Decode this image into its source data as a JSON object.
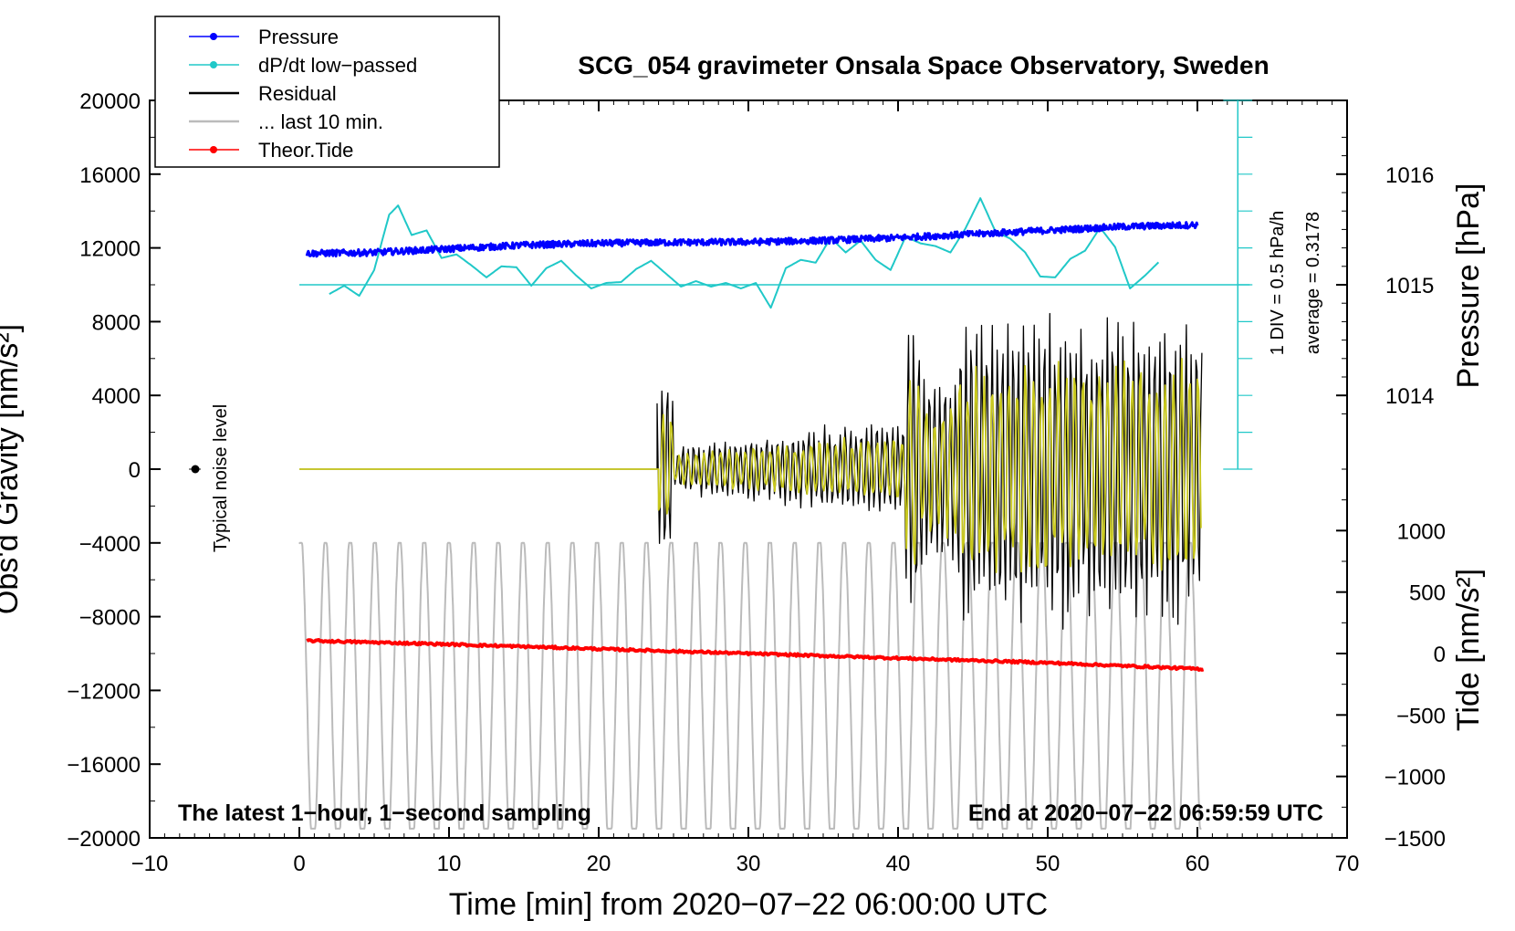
{
  "chart_data": {
    "type": "line",
    "title": "SCG_054 gravimeter Onsala Space Observatory, Sweden",
    "xlabel": "Time [min] from 2020−07−22 06:00:00 UTC",
    "xlim": [
      -10,
      70
    ],
    "x_ticks": [
      -10,
      0,
      10,
      20,
      30,
      40,
      50,
      60,
      70
    ],
    "x_tick_labels": [
      "−10",
      "0",
      "10",
      "20",
      "30",
      "40",
      "50",
      "60",
      "70"
    ],
    "left_axis": {
      "label": "Obs'd Gravity [nm/s²]",
      "ylim": [
        -20000,
        20000
      ],
      "ticks": [
        -20000,
        -16000,
        -12000,
        -8000,
        -4000,
        0,
        4000,
        8000,
        12000,
        16000,
        20000
      ],
      "tick_labels": [
        "−20000",
        "−16000",
        "−12000",
        "−8000",
        "−4000",
        "0",
        "4000",
        "8000",
        "12000",
        "16000",
        "20000"
      ]
    },
    "pressure_axis": {
      "label": "Pressure [hPa]",
      "ticks": [
        1014,
        1015,
        1016
      ],
      "tick_labels": [
        "1014",
        "1015",
        "1016"
      ],
      "gravity_equiv": [
        4000,
        10000,
        16000
      ]
    },
    "tide_axis": {
      "label": "Tide [nm/s²]",
      "ticks": [
        -1500,
        -1000,
        -500,
        0,
        500,
        1000
      ],
      "tick_labels": [
        "−1500",
        "−1000",
        "−500",
        "0",
        "500",
        "1000"
      ],
      "gravity_equiv": [
        -20000,
        -16667,
        -13333,
        -10000,
        -6667,
        -3333
      ]
    },
    "dpdt_scale": {
      "div_label": "1 DIV = 0.5 hPa/h",
      "average_label": "average = 0.3178",
      "x": 62.7,
      "y_range": [
        0,
        20000
      ],
      "baseline": 10000,
      "divisions": 10
    },
    "legend": [
      {
        "label": "Pressure",
        "color": "#0000ff",
        "marker": true
      },
      {
        "label": "dP/dt low−passed",
        "color": "#20c8c8",
        "marker": true
      },
      {
        "label": "Residual",
        "color": "#000000",
        "marker": false
      },
      {
        "label": "... last 10 min.",
        "color": "#bbbbbb",
        "marker": false
      },
      {
        "label": "Theor.Tide",
        "color": "#ff0000",
        "marker": true
      }
    ],
    "noise_level": {
      "label": "Typical noise level",
      "x": -7,
      "y": 0
    },
    "annotations": {
      "left_note": "The latest 1−hour, 1−second sampling",
      "right_note": "End at 2020−07−22 06:59:59 UTC"
    },
    "series": [
      {
        "name": "Pressure",
        "color": "#0000ff",
        "x": [
          0.5,
          5,
          10,
          15,
          20,
          25,
          30,
          35,
          40,
          45,
          50,
          55,
          60
        ],
        "y": [
          11700,
          11750,
          11950,
          12150,
          12250,
          12300,
          12320,
          12400,
          12550,
          12750,
          12950,
          13150,
          13250
        ]
      },
      {
        "name": "dP/dt low−passed",
        "color": "#20c8c8",
        "x": [
          2,
          3,
          4,
          5,
          6,
          6.6,
          7.5,
          8.5,
          9.5,
          10.5,
          11.5,
          12.5,
          13.5,
          14.5,
          15.5,
          16.5,
          17.5,
          18.5,
          19.5,
          20.5,
          21.5,
          22.5,
          23.5,
          24.5,
          25.5,
          26.5,
          27.5,
          28.5,
          29.5,
          30.5,
          31.5,
          32.5,
          33.5,
          34.5,
          35.5,
          36.5,
          37.5,
          38.5,
          39.5,
          40.5,
          41.5,
          42.5,
          43.5,
          44.5,
          45.5,
          46.5,
          47.5,
          48.5,
          49.5,
          50.5,
          51.5,
          52.5,
          53.5,
          54.5,
          55.5,
          56.5,
          57.5
        ],
        "y": [
          9500,
          9950,
          9400,
          10800,
          13800,
          14300,
          12700,
          12950,
          11450,
          11650,
          11050,
          10400,
          11000,
          10950,
          9950,
          10900,
          11300,
          10500,
          9800,
          10100,
          10150,
          10850,
          11300,
          10600,
          9900,
          10200,
          9900,
          10100,
          9800,
          10100,
          8750,
          10900,
          11350,
          11200,
          12550,
          11750,
          12400,
          11350,
          10800,
          12600,
          12250,
          12100,
          11750,
          13050,
          14700,
          12900,
          12500,
          11750,
          10450,
          10400,
          11400,
          11850,
          13100,
          12050,
          9800,
          10500,
          11300
        ]
      },
      {
        "name": "Residual",
        "color": "#000000",
        "x": [
          0,
          23.9,
          24.6,
          25,
          28,
          31,
          34,
          36,
          38,
          40.5,
          41.2,
          42,
          44,
          45.6,
          47,
          50,
          53,
          56,
          58,
          60.3
        ],
        "y": [
          0,
          0,
          5200,
          -4400,
          1500,
          1000,
          -2000,
          3200,
          -3000,
          -2500,
          8600,
          -8500,
          6500,
          8600,
          -9500,
          8500,
          -9000,
          8500,
          -9500,
          8000
        ]
      },
      {
        "name": "Residual (filtered)",
        "color": "#c8c81e",
        "x": [
          0,
          24,
          25,
          30,
          35,
          40,
          41,
          43,
          45.5,
          47,
          50,
          55,
          60
        ],
        "y": [
          0,
          0,
          3000,
          1500,
          -1800,
          2500,
          6000,
          -5000,
          7500,
          -6000,
          5000,
          -4500,
          4500
        ]
      },
      {
        "name": "... last 10 min.",
        "color": "#bbbbbb",
        "x": [
          0,
          60.3
        ],
        "y_range": [
          -21000,
          -3500
        ],
        "period_min": 1.65
      },
      {
        "name": "Theor.Tide",
        "color": "#ff0000",
        "x": [
          0.5,
          10,
          20,
          30,
          40,
          50,
          60.5
        ],
        "y": [
          -9300,
          -9500,
          -9750,
          -10000,
          -10250,
          -10500,
          -10850
        ]
      }
    ]
  }
}
